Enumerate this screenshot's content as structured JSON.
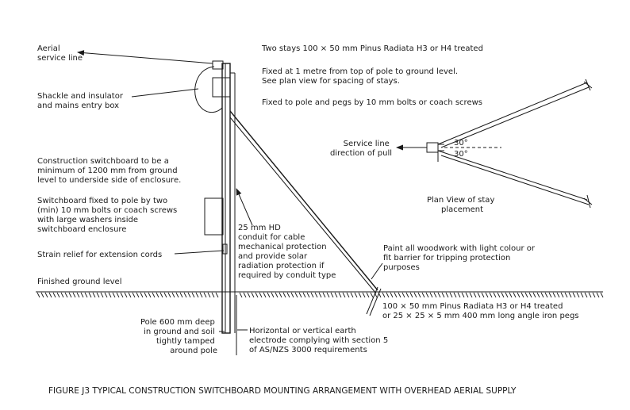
{
  "colors": {
    "ink": "#1a1a1a",
    "background": "#ffffff"
  },
  "labels": {
    "aerial_service_line": [
      "Aerial",
      "service line"
    ],
    "shackle_insulator": [
      "Shackle and insulator",
      "and mains entry box"
    ],
    "stays_spec": "Two stays 100 × 50 mm Pinus Radiata H3 or H4 treated",
    "stays_fixed": [
      "Fixed at 1 metre from top of pole to ground level.",
      "See plan view for spacing of stays."
    ],
    "stays_bolts": "Fixed to pole and pegs by 10 mm bolts or coach screws",
    "switchboard_height": [
      "Construction switchboard  to be a",
      "minimum of 1200 mm from ground",
      "level to underside side of enclosure."
    ],
    "switchboard_fixing": [
      "Switchboard fixed to pole by two",
      "(min) 10 mm bolts or coach screws",
      "with large washers inside",
      "switchboard enclosure"
    ],
    "conduit": [
      "25 mm HD",
      "conduit for cable",
      "mechanical protection",
      "and provide solar",
      "radiation protection if",
      "required by conduit type"
    ],
    "strain_relief": "Strain relief for extension cords",
    "finished_ground": "Finished ground level",
    "service_line_pull": [
      "Service line",
      "direction of pull"
    ],
    "angle_upper": "30°",
    "angle_lower": "30°",
    "plan_view": [
      "Plan View of stay",
      "placement"
    ],
    "paint": [
      "Paint all woodwork with light colour or",
      "fit barrier for tripping protection",
      "purposes"
    ],
    "pegs": [
      "100 × 50 mm Pinus Radiata H3 or H4 treated",
      "or 25 × 25 × 5 mm 400 mm long angle iron pegs"
    ],
    "pole_depth": [
      "Pole 600 mm deep",
      "in ground and soil",
      "tightly tamped",
      "around pole"
    ],
    "earth_electrode": [
      "Horizontal or vertical earth",
      "electrode complying with section 5",
      "of AS/NZS 3000 requirements"
    ],
    "caption": "FIGURE  J3   TYPICAL CONSTRUCTION SWITCHBOARD MOUNTING ARRANGEMENT WITH OVERHEAD AERIAL SUPPLY"
  }
}
